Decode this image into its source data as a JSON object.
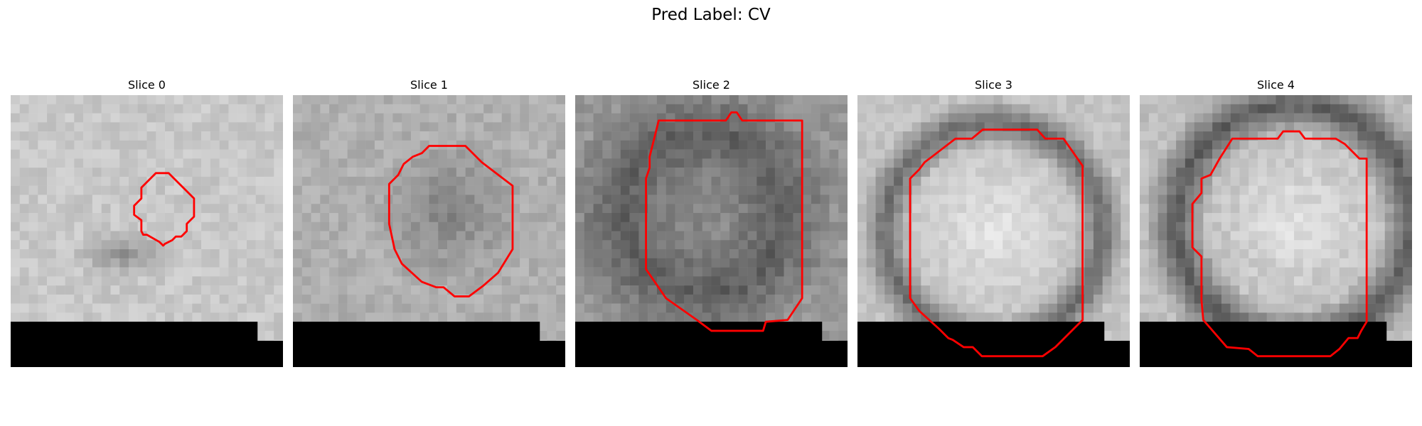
{
  "title": "Pred Label: CV",
  "panels": [
    {
      "label": "Slice 0"
    },
    {
      "label": "Slice 1"
    },
    {
      "label": "Slice 2"
    },
    {
      "label": "Slice 3"
    },
    {
      "label": "Slice 4"
    }
  ],
  "contour_color": "#ff0000",
  "mask_color": "#000000"
}
